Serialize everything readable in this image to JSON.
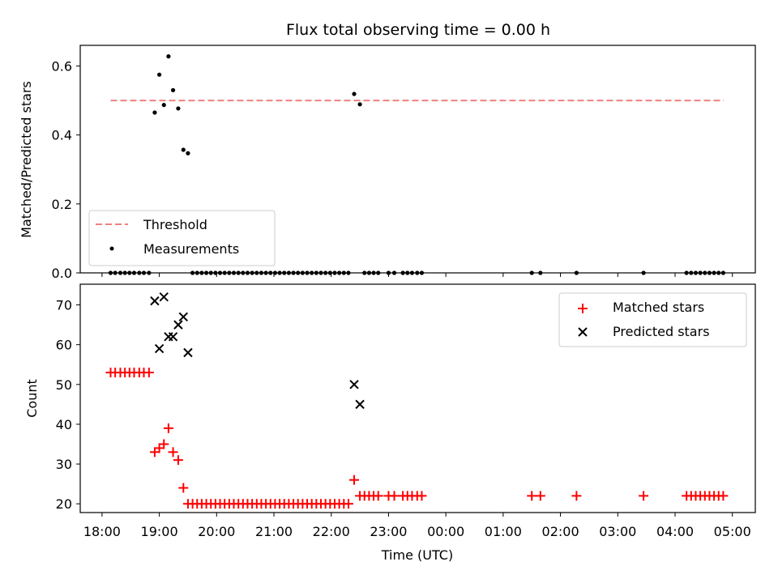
{
  "chart_data": {
    "type": "scatter",
    "title": "Flux total observing time = 0.00 h",
    "xlabel": "Time (UTC)",
    "xlim": [
      17.62,
      29.4
    ],
    "xticks": [
      {
        "value": 18,
        "label": "18:00"
      },
      {
        "value": 19,
        "label": "19:00"
      },
      {
        "value": 20,
        "label": "20:00"
      },
      {
        "value": 21,
        "label": "21:00"
      },
      {
        "value": 22,
        "label": "22:00"
      },
      {
        "value": 23,
        "label": "23:00"
      },
      {
        "value": 24,
        "label": "00:00"
      },
      {
        "value": 25,
        "label": "01:00"
      },
      {
        "value": 26,
        "label": "02:00"
      },
      {
        "value": 27,
        "label": "03:00"
      },
      {
        "value": 28,
        "label": "04:00"
      },
      {
        "value": 29,
        "label": "05:00"
      }
    ],
    "top": {
      "ylabel": "Matched/Predicted stars",
      "ylim": [
        0,
        0.66
      ],
      "yticks": [
        {
          "value": 0,
          "label": "0.0"
        },
        {
          "value": 0.2,
          "label": "0.2"
        },
        {
          "value": 0.4,
          "label": "0.4"
        },
        {
          "value": 0.6,
          "label": "0.6"
        }
      ],
      "legend_position": "lower-left",
      "threshold": {
        "name": "Threshold",
        "value": 0.5,
        "x_range": [
          18.15,
          28.85
        ],
        "color": "#f08080"
      },
      "measurements": {
        "name": "Measurements",
        "color": "#000000",
        "points": [
          [
            18.92,
            0.465
          ],
          [
            19.0,
            0.575
          ],
          [
            19.08,
            0.487
          ],
          [
            19.16,
            0.628
          ],
          [
            19.24,
            0.53
          ],
          [
            19.33,
            0.477
          ],
          [
            19.42,
            0.357
          ],
          [
            19.5,
            0.347
          ],
          [
            22.4,
            0.519
          ],
          [
            22.5,
            0.489
          ],
          [
            18.15,
            0
          ],
          [
            18.23,
            0
          ],
          [
            18.32,
            0
          ],
          [
            18.4,
            0
          ],
          [
            18.48,
            0
          ],
          [
            18.56,
            0
          ],
          [
            18.65,
            0
          ],
          [
            18.73,
            0
          ],
          [
            18.82,
            0
          ],
          [
            19.58,
            0
          ],
          [
            19.66,
            0
          ],
          [
            19.74,
            0
          ],
          [
            19.82,
            0
          ],
          [
            19.9,
            0
          ],
          [
            19.98,
            0
          ],
          [
            20.06,
            0
          ],
          [
            20.14,
            0
          ],
          [
            20.22,
            0
          ],
          [
            20.3,
            0
          ],
          [
            20.38,
            0
          ],
          [
            20.46,
            0
          ],
          [
            20.54,
            0
          ],
          [
            20.62,
            0
          ],
          [
            20.7,
            0
          ],
          [
            20.78,
            0
          ],
          [
            20.86,
            0
          ],
          [
            20.94,
            0
          ],
          [
            21.02,
            0
          ],
          [
            21.1,
            0
          ],
          [
            21.18,
            0
          ],
          [
            21.26,
            0
          ],
          [
            21.34,
            0
          ],
          [
            21.42,
            0
          ],
          [
            21.5,
            0
          ],
          [
            21.58,
            0
          ],
          [
            21.66,
            0
          ],
          [
            21.74,
            0
          ],
          [
            21.82,
            0
          ],
          [
            21.9,
            0
          ],
          [
            21.98,
            0
          ],
          [
            22.06,
            0
          ],
          [
            22.14,
            0
          ],
          [
            22.22,
            0
          ],
          [
            22.3,
            0
          ],
          [
            22.58,
            0
          ],
          [
            22.66,
            0
          ],
          [
            22.74,
            0
          ],
          [
            22.82,
            0
          ],
          [
            23.0,
            0
          ],
          [
            23.1,
            0
          ],
          [
            23.25,
            0
          ],
          [
            23.33,
            0
          ],
          [
            23.41,
            0
          ],
          [
            23.5,
            0
          ],
          [
            23.58,
            0
          ],
          [
            25.5,
            0
          ],
          [
            25.65,
            0
          ],
          [
            26.28,
            0
          ],
          [
            27.45,
            0
          ],
          [
            28.2,
            0
          ],
          [
            28.28,
            0
          ],
          [
            28.36,
            0
          ],
          [
            28.44,
            0
          ],
          [
            28.52,
            0
          ],
          [
            28.6,
            0
          ],
          [
            28.68,
            0
          ],
          [
            28.76,
            0
          ],
          [
            28.84,
            0
          ]
        ]
      }
    },
    "bottom": {
      "ylabel": "Count",
      "ylim": [
        17.8,
        75.2
      ],
      "yticks": [
        {
          "value": 20,
          "label": "20"
        },
        {
          "value": 30,
          "label": "30"
        },
        {
          "value": 40,
          "label": "40"
        },
        {
          "value": 50,
          "label": "50"
        },
        {
          "value": 60,
          "label": "60"
        },
        {
          "value": 70,
          "label": "70"
        }
      ],
      "legend_position": "upper-right",
      "series": [
        {
          "name": "Matched stars",
          "marker": "plus",
          "color": "#ff0000",
          "points": [
            [
              18.15,
              53
            ],
            [
              18.23,
              53
            ],
            [
              18.32,
              53
            ],
            [
              18.4,
              53
            ],
            [
              18.48,
              53
            ],
            [
              18.56,
              53
            ],
            [
              18.65,
              53
            ],
            [
              18.73,
              53
            ],
            [
              18.82,
              53
            ],
            [
              18.92,
              33
            ],
            [
              19.0,
              34
            ],
            [
              19.08,
              35
            ],
            [
              19.16,
              39
            ],
            [
              19.24,
              33
            ],
            [
              19.33,
              31
            ],
            [
              19.42,
              24
            ],
            [
              19.5,
              20
            ],
            [
              19.58,
              20
            ],
            [
              19.66,
              20
            ],
            [
              19.74,
              20
            ],
            [
              19.82,
              20
            ],
            [
              19.9,
              20
            ],
            [
              19.98,
              20
            ],
            [
              20.06,
              20
            ],
            [
              20.14,
              20
            ],
            [
              20.22,
              20
            ],
            [
              20.3,
              20
            ],
            [
              20.38,
              20
            ],
            [
              20.46,
              20
            ],
            [
              20.54,
              20
            ],
            [
              20.62,
              20
            ],
            [
              20.7,
              20
            ],
            [
              20.78,
              20
            ],
            [
              20.86,
              20
            ],
            [
              20.94,
              20
            ],
            [
              21.02,
              20
            ],
            [
              21.1,
              20
            ],
            [
              21.18,
              20
            ],
            [
              21.26,
              20
            ],
            [
              21.34,
              20
            ],
            [
              21.42,
              20
            ],
            [
              21.5,
              20
            ],
            [
              21.58,
              20
            ],
            [
              21.66,
              20
            ],
            [
              21.74,
              20
            ],
            [
              21.82,
              20
            ],
            [
              21.9,
              20
            ],
            [
              21.98,
              20
            ],
            [
              22.06,
              20
            ],
            [
              22.14,
              20
            ],
            [
              22.22,
              20
            ],
            [
              22.3,
              20
            ],
            [
              22.4,
              26
            ],
            [
              22.5,
              22
            ],
            [
              22.58,
              22
            ],
            [
              22.66,
              22
            ],
            [
              22.74,
              22
            ],
            [
              22.82,
              22
            ],
            [
              23.0,
              22
            ],
            [
              23.1,
              22
            ],
            [
              23.25,
              22
            ],
            [
              23.33,
              22
            ],
            [
              23.41,
              22
            ],
            [
              23.5,
              22
            ],
            [
              23.58,
              22
            ],
            [
              25.5,
              22
            ],
            [
              25.65,
              22
            ],
            [
              26.28,
              22
            ],
            [
              27.45,
              22
            ],
            [
              28.2,
              22
            ],
            [
              28.28,
              22
            ],
            [
              28.36,
              22
            ],
            [
              28.44,
              22
            ],
            [
              28.52,
              22
            ],
            [
              28.6,
              22
            ],
            [
              28.68,
              22
            ],
            [
              28.76,
              22
            ],
            [
              28.84,
              22
            ]
          ]
        },
        {
          "name": "Predicted stars",
          "marker": "x",
          "color": "#000000",
          "points": [
            [
              18.92,
              71
            ],
            [
              19.0,
              59
            ],
            [
              19.08,
              72
            ],
            [
              19.16,
              62
            ],
            [
              19.24,
              62
            ],
            [
              19.33,
              65
            ],
            [
              19.42,
              67
            ],
            [
              19.5,
              58
            ],
            [
              22.4,
              50
            ],
            [
              22.5,
              45
            ]
          ]
        }
      ]
    }
  }
}
